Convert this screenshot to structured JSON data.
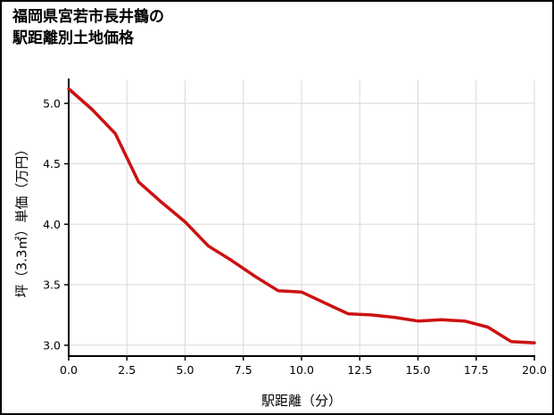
{
  "title": {
    "line1": "福岡県宮若市長井鶴の",
    "line2": "駅距離別土地価格"
  },
  "chart_data": {
    "type": "line",
    "title": "福岡県宮若市長井鶴の駅距離別土地価格",
    "xlabel": "駅距離（分）",
    "ylabel": "坪（3.3㎡）単価（万円）",
    "x": [
      0,
      1,
      2,
      3,
      4,
      5,
      6,
      7,
      8,
      9,
      10,
      11,
      12,
      13,
      14,
      15,
      16,
      17,
      18,
      19,
      20
    ],
    "y": [
      5.12,
      4.95,
      4.75,
      4.35,
      4.18,
      4.02,
      3.82,
      3.7,
      3.57,
      3.45,
      3.44,
      3.35,
      3.26,
      3.25,
      3.23,
      3.2,
      3.21,
      3.2,
      3.15,
      3.03,
      3.02
    ],
    "xticks": [
      0.0,
      2.5,
      5.0,
      7.5,
      10.0,
      12.5,
      15.0,
      17.5,
      20.0
    ],
    "xtick_labels": [
      "0.0",
      "2.5",
      "5.0",
      "7.5",
      "10.0",
      "12.5",
      "15.0",
      "17.5",
      "20.0"
    ],
    "yticks": [
      3.0,
      3.5,
      4.0,
      4.5,
      5.0
    ],
    "ytick_labels": [
      "3.0",
      "3.5",
      "4.0",
      "4.5",
      "5.0"
    ],
    "xlim": [
      0,
      20
    ],
    "ylim": [
      2.91,
      5.19
    ],
    "grid": true,
    "legend": "none",
    "line_color": "#cc1111",
    "grid_color": "#d9d9d9",
    "axis_color": "#000000",
    "tick_label_color": "#000000"
  }
}
